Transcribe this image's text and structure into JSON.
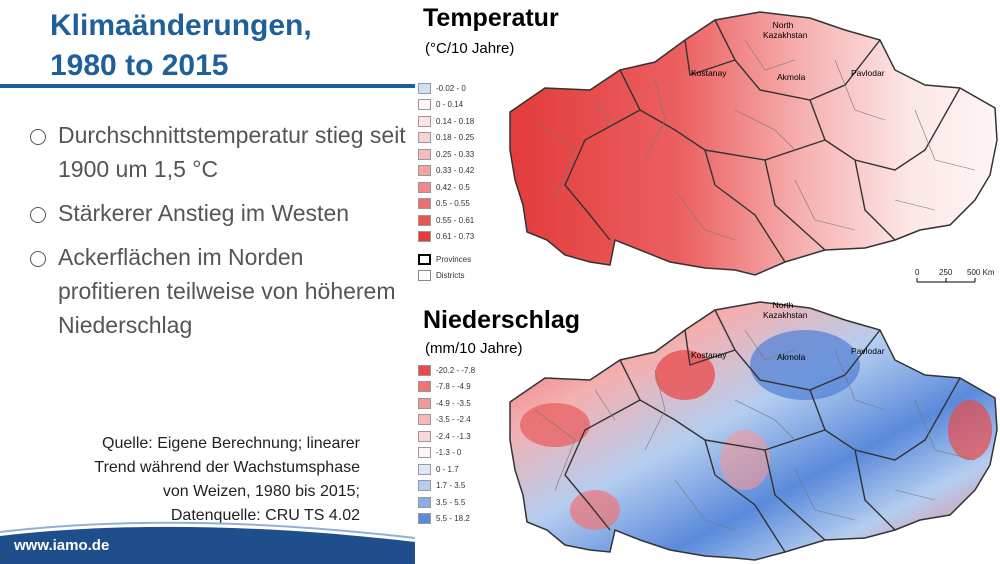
{
  "slide": {
    "title_line1": "Klimaänderungen,",
    "title_line2": "1980 to 2015",
    "bullets": [
      "Durchschnittstemperatur stieg seit 1900 um 1,5 °C",
      "Stärkerer Anstieg im Westen",
      "Ackerflächen im Norden profitieren teilweise von höherem Niederschlag"
    ],
    "source_lines": [
      "Quelle: Eigene Berechnung; linearer",
      "Trend während der Wachstumsphase",
      "von Weizen, 1980 bis 2015;",
      "Datenquelle: CRU TS 4.02"
    ],
    "footer_url": "www.iamo.de",
    "colors": {
      "accent": "#1f5f9a",
      "footer": "#1f4e8c"
    }
  },
  "temperature_map": {
    "title": "Temperatur",
    "unit": "(°C/10 Jahre)",
    "legend": [
      {
        "label": "-0.02 - 0",
        "color": "#cfe0f5"
      },
      {
        "label": "0 - 0.14",
        "color": "#fff5f5"
      },
      {
        "label": "0.14 - 0.18",
        "color": "#fde3e3"
      },
      {
        "label": "0.18 - 0.25",
        "color": "#fbd0d0"
      },
      {
        "label": "0.25 - 0.33",
        "color": "#f8bbbb"
      },
      {
        "label": "0.33 - 0.42",
        "color": "#f4a3a3"
      },
      {
        "label": "0.42 - 0.5",
        "color": "#f08a8a"
      },
      {
        "label": "0.5 - 0.55",
        "color": "#ec7070"
      },
      {
        "label": "0.55 - 0.61",
        "color": "#e85555"
      },
      {
        "label": "0.61 - 0.73",
        "color": "#e33b3b"
      }
    ],
    "boundaries": [
      {
        "label": "Provinces",
        "style": "bold"
      },
      {
        "label": "Districts",
        "style": "thin"
      }
    ],
    "place_labels": [
      "North Kazakhstan",
      "Kostanay",
      "Akmola",
      "Pavlodar"
    ],
    "scale_labels": [
      "0",
      "250",
      "500 Km"
    ]
  },
  "precipitation_map": {
    "title": "Niederschlag",
    "unit": "(mm/10 Jahre)",
    "legend": [
      {
        "label": "-20.2 - -7.8",
        "color": "#e84a4a"
      },
      {
        "label": "-7.8 - -4.9",
        "color": "#ef7373"
      },
      {
        "label": "-4.9 - -3.5",
        "color": "#f39898"
      },
      {
        "label": "-3.5 - -2.4",
        "color": "#f7b8b8"
      },
      {
        "label": "-2.4 - -1.3",
        "color": "#fbd8d8"
      },
      {
        "label": "-1.3 - 0",
        "color": "#fff3f3"
      },
      {
        "label": "0 - 1.7",
        "color": "#dce8f8"
      },
      {
        "label": "1.7 - 3.5",
        "color": "#b5cdf0"
      },
      {
        "label": "3.5 - 5.5",
        "color": "#8aaee6"
      },
      {
        "label": "5.5 - 18.2",
        "color": "#5a8adb"
      }
    ],
    "place_labels": [
      "North Kazakhstan",
      "Kostanay",
      "Akmola",
      "Pavlodar"
    ]
  }
}
